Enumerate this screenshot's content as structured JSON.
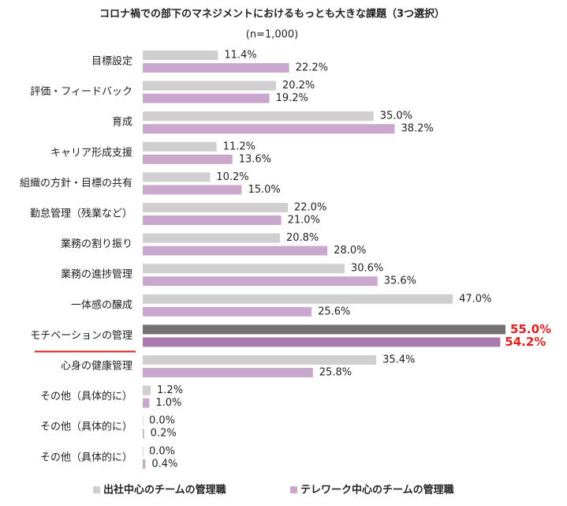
{
  "chart_data": {
    "type": "hbar",
    "title": "コロナ禍での部下のマネジメントにおけるもっとも大きな課題（3つ選択）",
    "subtitle": "(n=1,000)",
    "categories": [
      "目標設定",
      "評価・フィードバック",
      "育成",
      "キャリア形成支援",
      "組織の方針・目標の共有",
      "勤怠管理（残業など）",
      "業務の割り振り",
      "業務の進捗管理",
      "一体感の醸成",
      "モチベーションの管理",
      "心身の健康管理",
      "その他（具体的に）",
      "その他（具体的に）",
      "その他（具体的に）"
    ],
    "series": [
      {
        "name": "出社中心のチームの管理職",
        "color": "#d0cece",
        "highlight_color": "#767171",
        "values": [
          11.4,
          20.2,
          35.0,
          11.2,
          10.2,
          22.0,
          20.8,
          30.6,
          47.0,
          55.0,
          35.4,
          1.2,
          0.0,
          0.0
        ],
        "value_labels": [
          "11.4%",
          "20.2%",
          "35.0%",
          "11.2%",
          "10.2%",
          "22.0%",
          "20.8%",
          "30.6%",
          "47.0%",
          "55.0%",
          "35.4%",
          "1.2%",
          "0.0%",
          "0.0%"
        ]
      },
      {
        "name": "テレワーク中心のチームの管理職",
        "color": "#caa8cd",
        "highlight_color": "#a87aad",
        "values": [
          22.2,
          19.2,
          38.2,
          13.6,
          15.0,
          21.0,
          28.0,
          35.6,
          25.6,
          54.2,
          25.8,
          1.0,
          0.2,
          0.4
        ],
        "value_labels": [
          "22.2%",
          "19.2%",
          "38.2%",
          "13.6%",
          "15.0%",
          "21.0%",
          "28.0%",
          "35.6%",
          "25.6%",
          "54.2%",
          "25.8%",
          "1.0%",
          "0.2%",
          "0.4%"
        ]
      }
    ],
    "highlight": {
      "index": 9,
      "label_color": "#e02020"
    },
    "xlim": [
      0,
      55
    ]
  }
}
